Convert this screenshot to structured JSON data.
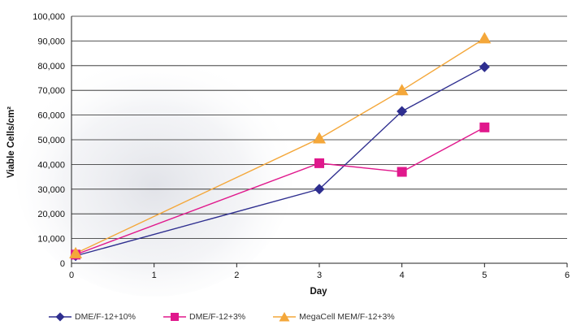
{
  "chart_data": {
    "type": "line",
    "xlabel": "Day",
    "ylabel": "Viable Cells/cm²",
    "xlim": [
      0,
      6
    ],
    "ylim": [
      0,
      100000
    ],
    "x_ticks": [
      "0",
      "1",
      "2",
      "3",
      "4",
      "5",
      "6"
    ],
    "y_ticks": [
      "0",
      "10,000",
      "20,000",
      "30,000",
      "40,000",
      "50,000",
      "60,000",
      "70,000",
      "80,000",
      "90,000",
      "100,000"
    ],
    "grid": "horizontal",
    "legend_position": "bottom",
    "series": [
      {
        "name": "DME/F-12+10%",
        "color": "#2e2e8f",
        "marker": "diamond",
        "x": [
          0.05,
          3,
          4,
          5
        ],
        "y": [
          3000,
          30000,
          61500,
          79500
        ]
      },
      {
        "name": "DME/F-12+3%",
        "color": "#e0188c",
        "marker": "square",
        "x": [
          0.05,
          3,
          4,
          5
        ],
        "y": [
          3500,
          40500,
          37000,
          55000
        ]
      },
      {
        "name": "MegaCell MEM/F-12+3%",
        "color": "#f4a73a",
        "marker": "triangle",
        "x": [
          0.05,
          3,
          4,
          5
        ],
        "y": [
          4000,
          50500,
          70000,
          91000
        ]
      }
    ]
  }
}
